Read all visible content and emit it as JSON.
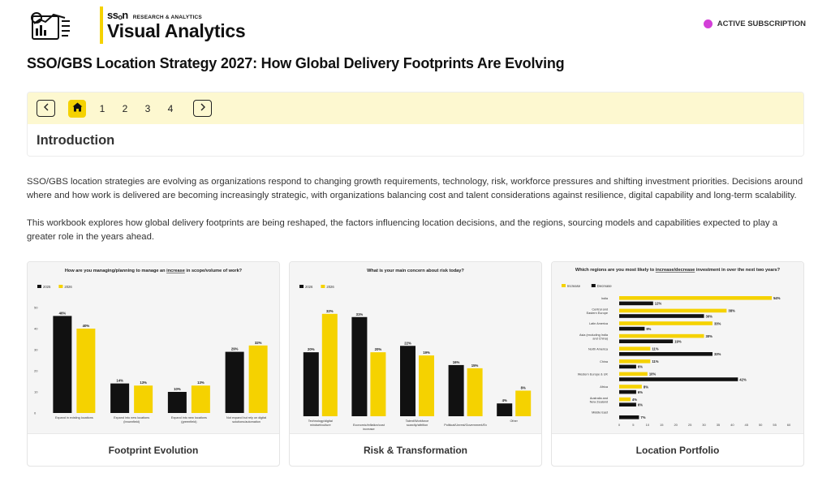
{
  "brand": {
    "sson": "ssₒn",
    "subtitle": "RESEARCH & ANALYTICS",
    "title": "Visual Analytics"
  },
  "subscription": {
    "label": "ACTIVE SUBSCRIPTION",
    "dot_color": "#d33fd8"
  },
  "page_title": "SSO/GBS Location Strategy 2027: How Global Delivery Footprints Are Evolving",
  "nav": {
    "prev_icon": "chevron-left-icon",
    "home_icon": "home-icon",
    "pages": [
      "1",
      "2",
      "3",
      "4"
    ],
    "next_icon": "chevron-right-icon",
    "section_title": "Introduction"
  },
  "intro": {
    "p1": "SSO/GBS location strategies are evolving as organizations respond to changing growth requirements, technology, risk, workforce pressures and shifting investment priorities. Decisions around where and how work is delivered are becoming increasingly strategic, with organizations balancing cost and talent considerations against resilience, digital capability and long-term scalability.",
    "p2": "This workbook explores how global delivery footprints are being reshaped, the factors influencing location decisions, and the regions, sourcing models and capabilities expected to play a greater role in the years ahead."
  },
  "colors": {
    "accent": "#f5d200",
    "dark": "#111111"
  },
  "cards": [
    {
      "label": "Footprint Evolution"
    },
    {
      "label": "Risk & Transformation"
    },
    {
      "label": "Location Portfolio"
    }
  ],
  "chart_data": [
    {
      "type": "bar",
      "title_parts": [
        "How are you managing/planning to manage an ",
        "increase",
        " in scope/volume of work?"
      ],
      "categories": [
        "Expand in existing locations",
        "Expand into new locations (brownfield)",
        "Expand into new locations (greenfield)",
        "Not expand but rely on digital solutions/automation"
      ],
      "series": [
        {
          "name": "2025",
          "color": "#111111",
          "values": [
            46,
            14,
            10,
            29
          ]
        },
        {
          "name": "2026",
          "color": "#f5d200",
          "values": [
            40,
            13,
            13,
            32
          ]
        }
      ],
      "yticks": [
        0,
        10,
        20,
        30,
        40,
        50
      ],
      "ylim": [
        0,
        50
      ],
      "legend": "top-left"
    },
    {
      "type": "bar",
      "title": "What is your main concern about risk today?",
      "categories": [
        "Technology/digital mindset/culture",
        "Economic/inflation/cost increase",
        "Talent/Workforce scarcity/attrition",
        "Political/Unrest/Government/Ex",
        "Other"
      ],
      "series": [
        {
          "name": "2026",
          "color": "#111111",
          "values": [
            20,
            31,
            22,
            16,
            4
          ]
        },
        {
          "name": "2026",
          "color": "#f5d200",
          "values": [
            32,
            20,
            19,
            15,
            8
          ]
        }
      ],
      "yticks": [
        0,
        5,
        10,
        15,
        20,
        25,
        30,
        35
      ],
      "ylim": [
        0,
        35
      ],
      "legend": "top-left"
    },
    {
      "type": "bar-horizontal",
      "title_parts": [
        "Which regions are you most likely to ",
        "increase/decrease",
        " investment in over the next two years?"
      ],
      "categories": [
        "India",
        "Central and Eastern Europe",
        "Latin America",
        "Asia (excluding India and China)",
        "North America",
        "China",
        "Western Europe & UK",
        "Africa",
        "Australia and New Zealand",
        "Middle East"
      ],
      "series": [
        {
          "name": "Increase",
          "color": "#f5d200",
          "values": [
            54,
            38,
            33,
            30,
            11,
            11,
            10,
            8,
            4,
            null
          ]
        },
        {
          "name": "Decrease",
          "color": "#111111",
          "values": [
            12,
            30,
            9,
            19,
            33,
            6,
            42,
            6,
            6,
            7
          ]
        }
      ],
      "xticks": [
        0,
        5,
        10,
        15,
        20,
        25,
        30,
        35,
        40,
        45,
        50,
        55,
        60
      ],
      "xlim": [
        0,
        60
      ],
      "legend": "top-left"
    }
  ]
}
